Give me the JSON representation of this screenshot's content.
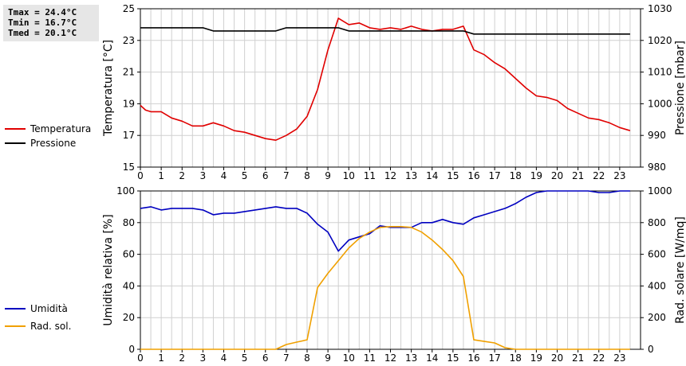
{
  "stats": {
    "tmax": "Tmax = 24.4°C",
    "tmin": "Tmin = 16.7°C",
    "tmed": "Tmed = 20.1°C"
  },
  "colors": {
    "temperatura": "#e00000",
    "pressione": "#000000",
    "umidita": "#0000c0",
    "rad_sol": "#f0a000",
    "grid": "#d0d0d0"
  },
  "chart_data": [
    {
      "type": "line",
      "x_ticks": [
        0,
        1,
        2,
        3,
        4,
        5,
        6,
        7,
        8,
        9,
        10,
        11,
        12,
        13,
        14,
        15,
        16,
        17,
        18,
        19,
        20,
        21,
        22,
        23
      ],
      "xlim": [
        0,
        24
      ],
      "grid": true,
      "ylabel_left": "Temperatura [°C]",
      "ylim_left": [
        15,
        25
      ],
      "yticks_left": [
        15,
        17,
        19,
        21,
        23,
        25
      ],
      "ylabel_right": "Pressione [mbar]",
      "ylim_right": [
        980,
        1030
      ],
      "yticks_right": [
        980,
        990,
        1000,
        1010,
        1020,
        1030
      ],
      "legend_position": "left",
      "series": [
        {
          "name": "Temperatura",
          "axis": "left",
          "color_key": "temperatura",
          "x": [
            0,
            0.25,
            0.5,
            1,
            1.5,
            2,
            2.5,
            3,
            3.5,
            4,
            4.5,
            5,
            5.5,
            6,
            6.5,
            7,
            7.5,
            8,
            8.5,
            9,
            9.5,
            10,
            10.5,
            11,
            11.5,
            12,
            12.5,
            13,
            13.5,
            14,
            14.5,
            15,
            15.5,
            16,
            16.5,
            17,
            17.5,
            18,
            18.5,
            19,
            19.5,
            20,
            20.5,
            21,
            21.5,
            22,
            22.5,
            23,
            23.5
          ],
          "y": [
            18.9,
            18.6,
            18.5,
            18.5,
            18.1,
            17.9,
            17.6,
            17.6,
            17.8,
            17.6,
            17.3,
            17.2,
            17.0,
            16.8,
            16.7,
            17.0,
            17.4,
            18.2,
            19.9,
            22.4,
            24.4,
            24.0,
            24.1,
            23.8,
            23.7,
            23.8,
            23.7,
            23.9,
            23.7,
            23.6,
            23.7,
            23.7,
            23.9,
            22.4,
            22.1,
            21.6,
            21.2,
            20.6,
            20.0,
            19.5,
            19.4,
            19.2,
            18.7,
            18.4,
            18.1,
            18.0,
            17.8,
            17.5,
            17.3
          ]
        },
        {
          "name": "Pressione",
          "axis": "right",
          "color_key": "pressione",
          "x": [
            0,
            3,
            3.5,
            6.5,
            7,
            9.5,
            10,
            15.5,
            16,
            23.5
          ],
          "y": [
            1024,
            1024,
            1023,
            1023,
            1024,
            1024,
            1023,
            1023,
            1022,
            1022
          ]
        }
      ]
    },
    {
      "type": "line",
      "x_ticks": [
        0,
        1,
        2,
        3,
        4,
        5,
        6,
        7,
        8,
        9,
        10,
        11,
        12,
        13,
        14,
        15,
        16,
        17,
        18,
        19,
        20,
        21,
        22,
        23
      ],
      "xlim": [
        0,
        24
      ],
      "grid": true,
      "ylabel_left": "Umidità relativa [%]",
      "ylim_left": [
        0,
        100
      ],
      "yticks_left": [
        0,
        20,
        40,
        60,
        80,
        100
      ],
      "ylabel_right": "Rad. solare [W/mq]",
      "ylim_right": [
        0,
        1000
      ],
      "yticks_right": [
        0,
        200,
        400,
        600,
        800,
        1000
      ],
      "legend_position": "left",
      "series": [
        {
          "name": "Umidità",
          "axis": "left",
          "color_key": "umidita",
          "x": [
            0,
            0.5,
            1,
            1.5,
            2,
            2.5,
            3,
            3.5,
            4,
            4.5,
            5,
            5.5,
            6,
            6.5,
            7,
            7.5,
            8,
            8.5,
            9,
            9.5,
            10,
            10.5,
            11,
            11.5,
            12,
            12.5,
            13,
            13.5,
            14,
            14.5,
            15,
            15.5,
            16,
            16.5,
            17,
            17.5,
            18,
            18.5,
            19,
            19.5,
            20,
            20.5,
            21,
            21.5,
            22,
            22.5,
            23,
            23.5
          ],
          "y": [
            89,
            90,
            88,
            89,
            89,
            89,
            88,
            85,
            86,
            86,
            87,
            88,
            89,
            90,
            89,
            89,
            86,
            79,
            74,
            62,
            69,
            71,
            73,
            78,
            77,
            77,
            77,
            80,
            80,
            82,
            80,
            79,
            83,
            85,
            87,
            89,
            92,
            96,
            99,
            100,
            100,
            100,
            100,
            100,
            99,
            99,
            100,
            100
          ]
        },
        {
          "name": "Rad. sol.",
          "axis": "right",
          "color_key": "rad_sol",
          "x": [
            0,
            1,
            2,
            3,
            4,
            5,
            6,
            6.5,
            7,
            7.5,
            8,
            8.5,
            9,
            9.5,
            10,
            10.5,
            11,
            11.5,
            12,
            12.5,
            13,
            13.5,
            14,
            14.5,
            15,
            15.5,
            16,
            16.5,
            17,
            17.5,
            18,
            19,
            20,
            21,
            22,
            23,
            23.5
          ],
          "y": [
            0,
            0,
            0,
            0,
            0,
            0,
            0,
            0,
            30,
            45,
            60,
            390,
            480,
            560,
            640,
            700,
            740,
            770,
            775,
            775,
            770,
            740,
            690,
            630,
            560,
            460,
            60,
            50,
            40,
            10,
            0,
            0,
            0,
            0,
            0,
            0,
            0
          ]
        }
      ]
    }
  ]
}
